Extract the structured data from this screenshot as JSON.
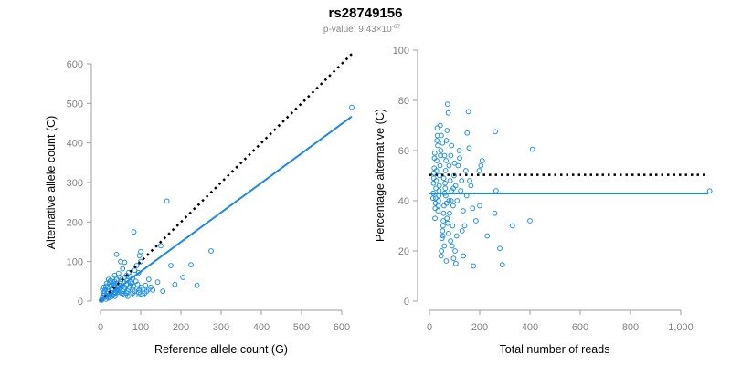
{
  "title": "rs28749156",
  "subtitle": {
    "prefix": "p-value: 9.43×10",
    "exponent": "-67"
  },
  "colors": {
    "points": "#1f8fdf",
    "fit_line": "#1e88e5",
    "reference_line": "#000000",
    "axis": "#9e9e9e",
    "tick_text": "#808080"
  },
  "chart_data": [
    {
      "type": "scatter",
      "xlabel": "Reference allele count (G)",
      "ylabel": "Alternative allele count (C)",
      "xlim": [
        0,
        630
      ],
      "ylim": [
        0,
        600
      ],
      "xticks": [
        {
          "value": 0,
          "label": "0"
        },
        {
          "value": 100,
          "label": "100"
        },
        {
          "value": 200,
          "label": "200"
        },
        {
          "value": 300,
          "label": "300"
        },
        {
          "value": 400,
          "label": "400"
        },
        {
          "value": 500,
          "label": "500"
        },
        {
          "value": 600,
          "label": "600"
        }
      ],
      "yticks": [
        {
          "value": 0,
          "label": "0"
        },
        {
          "value": 100,
          "label": "100"
        },
        {
          "value": 200,
          "label": "200"
        },
        {
          "value": 300,
          "label": "300"
        },
        {
          "value": 400,
          "label": "400"
        },
        {
          "value": 500,
          "label": "500"
        },
        {
          "value": 600,
          "label": "600"
        }
      ],
      "reference_line": {
        "style": "dotted",
        "x": [
          0,
          625
        ],
        "y": [
          0,
          625
        ]
      },
      "fit_line": {
        "style": "solid",
        "x": [
          0,
          625
        ],
        "y": [
          0,
          467
        ]
      },
      "points": [
        [
          625,
          490
        ],
        [
          165,
          253
        ],
        [
          83,
          175
        ],
        [
          275,
          127
        ],
        [
          225,
          92
        ],
        [
          205,
          60
        ],
        [
          240,
          40
        ],
        [
          175,
          90
        ],
        [
          150,
          140
        ],
        [
          155,
          25
        ],
        [
          185,
          42
        ],
        [
          120,
          55
        ],
        [
          100,
          125
        ],
        [
          97,
          115
        ],
        [
          100,
          100
        ],
        [
          90,
          90
        ],
        [
          85,
          78
        ],
        [
          95,
          72
        ],
        [
          60,
          98
        ],
        [
          50,
          100
        ],
        [
          40,
          118
        ],
        [
          55,
          82
        ],
        [
          65,
          65
        ],
        [
          48,
          60
        ],
        [
          40,
          55
        ],
        [
          35,
          50
        ],
        [
          30,
          58
        ],
        [
          25,
          52
        ],
        [
          20,
          55
        ],
        [
          15,
          45
        ],
        [
          18,
          35
        ],
        [
          12,
          30
        ],
        [
          10,
          25
        ],
        [
          8,
          20
        ],
        [
          6,
          15
        ],
        [
          5,
          10
        ],
        [
          4,
          6
        ],
        [
          3,
          3
        ],
        [
          2,
          2
        ],
        [
          5,
          30
        ],
        [
          8,
          35
        ],
        [
          10,
          15
        ],
        [
          12,
          10
        ],
        [
          14,
          5
        ],
        [
          16,
          20
        ],
        [
          18,
          25
        ],
        [
          20,
          30
        ],
        [
          22,
          15
        ],
        [
          24,
          18
        ],
        [
          26,
          22
        ],
        [
          28,
          32
        ],
        [
          30,
          28
        ],
        [
          32,
          38
        ],
        [
          34,
          42
        ],
        [
          36,
          12
        ],
        [
          38,
          20
        ],
        [
          40,
          25
        ],
        [
          42,
          30
        ],
        [
          44,
          35
        ],
        [
          46,
          40
        ],
        [
          48,
          45
        ],
        [
          50,
          50
        ],
        [
          52,
          20
        ],
        [
          55,
          25
        ],
        [
          58,
          30
        ],
        [
          60,
          35
        ],
        [
          62,
          15
        ],
        [
          65,
          20
        ],
        [
          68,
          25
        ],
        [
          70,
          30
        ],
        [
          72,
          35
        ],
        [
          75,
          40
        ],
        [
          78,
          45
        ],
        [
          80,
          20
        ],
        [
          85,
          25
        ],
        [
          90,
          30
        ],
        [
          95,
          22
        ],
        [
          100,
          18
        ],
        [
          105,
          15
        ],
        [
          110,
          20
        ],
        [
          115,
          25
        ],
        [
          120,
          30
        ],
        [
          125,
          35
        ],
        [
          130,
          28
        ],
        [
          35,
          65
        ],
        [
          45,
          70
        ],
        [
          52,
          55
        ],
        [
          58,
          48
        ],
        [
          27,
          40
        ],
        [
          33,
          45
        ],
        [
          60,
          60
        ],
        [
          66,
          52
        ],
        [
          70,
          72
        ],
        [
          75,
          62
        ],
        [
          80,
          58
        ],
        [
          88,
          50
        ],
        [
          14,
          38
        ],
        [
          16,
          12
        ],
        [
          20,
          8
        ],
        [
          24,
          10
        ],
        [
          28,
          12
        ],
        [
          32,
          18
        ],
        [
          36,
          22
        ],
        [
          42,
          28
        ],
        [
          46,
          32
        ],
        [
          54,
          38
        ],
        [
          64,
          42
        ],
        [
          74,
          48
        ],
        [
          82,
          38
        ],
        [
          92,
          42
        ],
        [
          102,
          35
        ],
        [
          112,
          40
        ],
        [
          142,
          48
        ],
        [
          22,
          48
        ],
        [
          44,
          22
        ],
        [
          56,
          18
        ],
        [
          68,
          12
        ],
        [
          86,
          15
        ],
        [
          96,
          28
        ],
        [
          106,
          30
        ]
      ]
    },
    {
      "type": "scatter",
      "xlabel": "Total number of reads",
      "ylabel": "Percentage alternative (C)",
      "xlim": [
        0,
        1110
      ],
      "ylim": [
        0,
        100
      ],
      "xticks": [
        {
          "value": 0,
          "label": "0"
        },
        {
          "value": 200,
          "label": "200"
        },
        {
          "value": 400,
          "label": "400"
        },
        {
          "value": 600,
          "label": "600"
        },
        {
          "value": 800,
          "label": "800"
        },
        {
          "value": 1000,
          "label": "1,000"
        }
      ],
      "yticks": [
        {
          "value": 0,
          "label": "0"
        },
        {
          "value": 20,
          "label": "20"
        },
        {
          "value": 40,
          "label": "40"
        },
        {
          "value": 60,
          "label": "60"
        },
        {
          "value": 80,
          "label": "80"
        },
        {
          "value": 100,
          "label": "100"
        }
      ],
      "reference_line": {
        "style": "dotted",
        "y": 50.3
      },
      "fit_line": {
        "style": "solid",
        "y": 42.9
      },
      "points": [
        [
          1115,
          43.9
        ],
        [
          410,
          60.5
        ],
        [
          400,
          32
        ],
        [
          330,
          30
        ],
        [
          290,
          14.5
        ],
        [
          280,
          21
        ],
        [
          265,
          44
        ],
        [
          260,
          35
        ],
        [
          262,
          67.5
        ],
        [
          230,
          26
        ],
        [
          210,
          56
        ],
        [
          205,
          54
        ],
        [
          200,
          38
        ],
        [
          185,
          32
        ],
        [
          175,
          14
        ],
        [
          165,
          46
        ],
        [
          160,
          48
        ],
        [
          155,
          75.5
        ],
        [
          158,
          61
        ],
        [
          150,
          67
        ],
        [
          145,
          52
        ],
        [
          140,
          30
        ],
        [
          135,
          18
        ],
        [
          130,
          28
        ],
        [
          120,
          57
        ],
        [
          110,
          40
        ],
        [
          105,
          15
        ],
        [
          102,
          20
        ],
        [
          100,
          55
        ],
        [
          98,
          50
        ],
        [
          95,
          45
        ],
        [
          92,
          30
        ],
        [
          90,
          22
        ],
        [
          88,
          62
        ],
        [
          85,
          58
        ],
        [
          82,
          48
        ],
        [
          80,
          35
        ],
        [
          78,
          40
        ],
        [
          75,
          75
        ],
        [
          72,
          78.5
        ],
        [
          70,
          68
        ],
        [
          68,
          64
        ],
        [
          66,
          56
        ],
        [
          64,
          52
        ],
        [
          62,
          47
        ],
        [
          60,
          43
        ],
        [
          58,
          38
        ],
        [
          56,
          35
        ],
        [
          55,
          32
        ],
        [
          54,
          30
        ],
        [
          52,
          28
        ],
        [
          50,
          25
        ],
        [
          48,
          20
        ],
        [
          46,
          18
        ],
        [
          45,
          60
        ],
        [
          44,
          58
        ],
        [
          42,
          54
        ],
        [
          40,
          50
        ],
        [
          39,
          46
        ],
        [
          38,
          44
        ],
        [
          37,
          42
        ],
        [
          36,
          40
        ],
        [
          35,
          38
        ],
        [
          34,
          36
        ],
        [
          33,
          62
        ],
        [
          32,
          66
        ],
        [
          31,
          69
        ],
        [
          30,
          64
        ],
        [
          29,
          56
        ],
        [
          28,
          52
        ],
        [
          27,
          48
        ],
        [
          26,
          45
        ],
        [
          25,
          41
        ],
        [
          24,
          39
        ],
        [
          23,
          37
        ],
        [
          22,
          33
        ],
        [
          21,
          59
        ],
        [
          20,
          57
        ],
        [
          19,
          53
        ],
        [
          18,
          51
        ],
        [
          17,
          49
        ],
        [
          16,
          47
        ],
        [
          15,
          43
        ],
        [
          14,
          41
        ],
        [
          60,
          58
        ],
        [
          65,
          42
        ],
        [
          70,
          33
        ],
        [
          76,
          27
        ],
        [
          84,
          24
        ],
        [
          94,
          38
        ],
        [
          104,
          46
        ],
        [
          114,
          54
        ],
        [
          124,
          44
        ],
        [
          134,
          36
        ],
        [
          52,
          63
        ],
        [
          57,
          49
        ],
        [
          63,
          45
        ],
        [
          68,
          39
        ],
        [
          73,
          31
        ],
        [
          86,
          40
        ],
        [
          96,
          17
        ],
        [
          108,
          26
        ],
        [
          118,
          60
        ],
        [
          128,
          48
        ],
        [
          148,
          42
        ],
        [
          172,
          37
        ],
        [
          198,
          52
        ],
        [
          43,
          70
        ],
        [
          47,
          66
        ],
        [
          53,
          26
        ],
        [
          59,
          22
        ],
        [
          67,
          16
        ],
        [
          78,
          54
        ],
        [
          88,
          44
        ]
      ]
    }
  ]
}
